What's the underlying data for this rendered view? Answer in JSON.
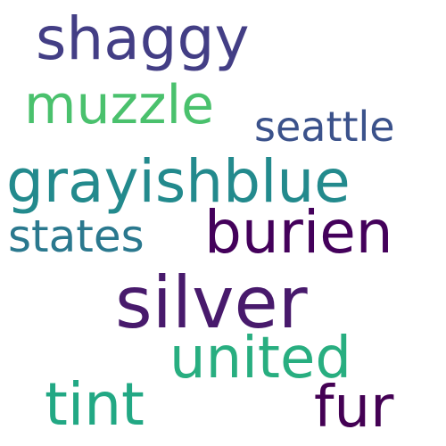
{
  "words": [
    {
      "id": "silver",
      "text": "silver",
      "color": "#481a6c"
    },
    {
      "id": "grayishblue",
      "text": "grayishblue",
      "color": "#238a8d"
    },
    {
      "id": "shaggy",
      "text": "shaggy",
      "color": "#433e85"
    },
    {
      "id": "burien",
      "text": "burien",
      "color": "#44015b"
    },
    {
      "id": "muzzle",
      "text": "muzzle",
      "color": "#4ac16d"
    },
    {
      "id": "united",
      "text": "united",
      "color": "#28ae80"
    },
    {
      "id": "fur",
      "text": "fur",
      "color": "#440154"
    },
    {
      "id": "tint",
      "text": "tint",
      "color": "#22a884"
    },
    {
      "id": "states",
      "text": "states",
      "color": "#2a788e"
    },
    {
      "id": "seattle",
      "text": "seattle",
      "color": "#3b528b"
    }
  ]
}
